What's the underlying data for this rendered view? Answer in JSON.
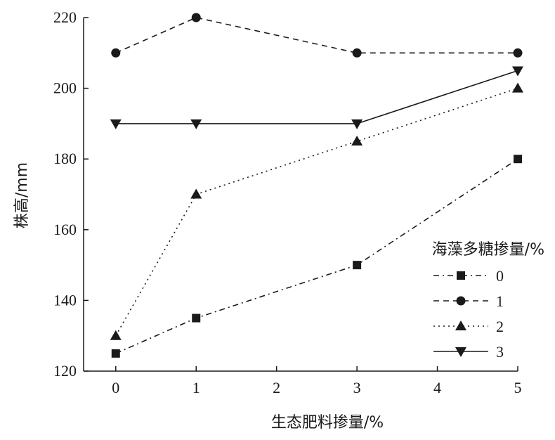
{
  "chart_data": {
    "type": "line",
    "xlabel": "生态肥料掺量/%",
    "ylabel": "株高/mm",
    "xlim": [
      -0.4,
      5
    ],
    "ylim": [
      120,
      220
    ],
    "x_ticks": [
      0,
      1,
      2,
      3,
      4,
      5
    ],
    "y_ticks": [
      120,
      140,
      160,
      180,
      200,
      220
    ],
    "grid": false,
    "legend": {
      "title": "海藻多糖掺量/%",
      "placement": "right"
    },
    "series": [
      {
        "name": "0",
        "marker": "square",
        "dash": "dash-dot",
        "x": [
          0,
          1,
          3,
          5
        ],
        "y": [
          125,
          135,
          150,
          180
        ]
      },
      {
        "name": "1",
        "marker": "circle",
        "dash": "dashed",
        "x": [
          0,
          1,
          3,
          5
        ],
        "y": [
          210,
          220,
          210,
          210
        ]
      },
      {
        "name": "2",
        "marker": "triangle-up",
        "dash": "dotted",
        "x": [
          0,
          1,
          3,
          5
        ],
        "y": [
          130,
          170,
          185,
          200
        ]
      },
      {
        "name": "3",
        "marker": "triangle-down",
        "dash": "solid",
        "x": [
          0,
          1,
          3,
          5
        ],
        "y": [
          190,
          190,
          190,
          205
        ]
      }
    ],
    "colors": {
      "line": "#1a1a1a"
    }
  }
}
